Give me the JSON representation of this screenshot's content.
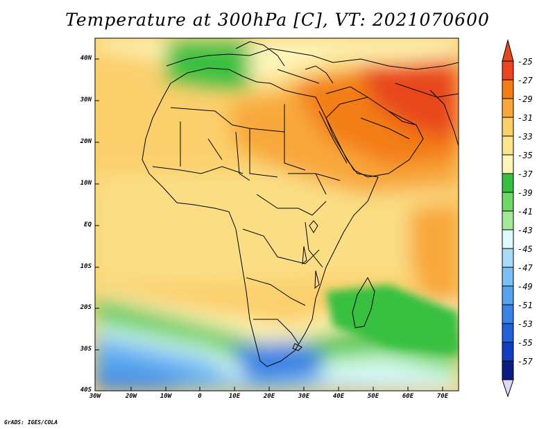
{
  "title": "Temperature at 300hPa [C], VT: 2021070600",
  "credit": "GrADS: IGES/COLA",
  "lat_labels": [
    "40N",
    "30N",
    "20N",
    "10N",
    "EQ",
    "10S",
    "20S",
    "30S",
    "40S"
  ],
  "lon_labels": [
    "30W",
    "20W",
    "10W",
    "0",
    "10E",
    "20E",
    "30E",
    "40E",
    "50E",
    "60E",
    "70E"
  ],
  "colorbar": {
    "labels": [
      "-25",
      "-27",
      "-29",
      "-31",
      "-33",
      "-35",
      "-37",
      "-39",
      "-41",
      "-43",
      "-45",
      "-47",
      "-49",
      "-51",
      "-53",
      "-55",
      "-57"
    ],
    "colors": [
      "#e8461e",
      "#f37d16",
      "#f8a73a",
      "#fbcf6c",
      "#fbe48f",
      "#fdf5bc",
      "#37c040",
      "#6fd66a",
      "#a5e89a",
      "#dcfbfa",
      "#a9dbf7",
      "#7cbff3",
      "#57a4ee",
      "#3a84e5",
      "#2261d8",
      "#123fc0",
      "#0b1d82"
    ],
    "over_color": "#e8461e",
    "under_color": "#dcdaf5"
  }
}
